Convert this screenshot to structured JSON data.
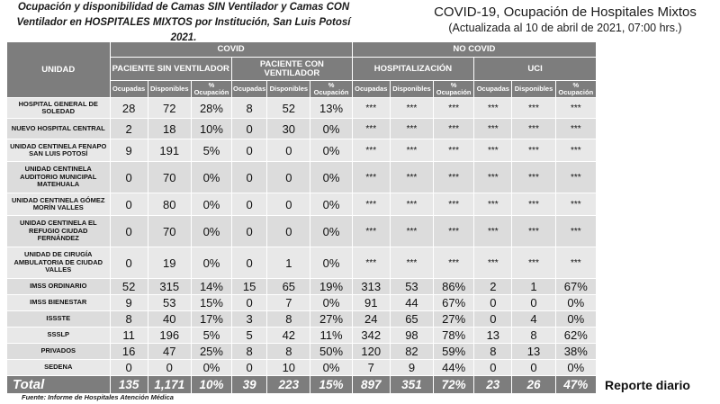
{
  "header": {
    "left_title": "Ocupación y disponibilidad de Camas SIN Ventilador y Camas CON Ventilador en HOSPITALES MIXTOS por Institución, San Luis Potosí 2021.",
    "right_title": "COVID-19, Ocupación de Hospitales Mixtos",
    "right_subtitle": "(Actualizada al 10 de abril de 2021, 07:00 hrs.)"
  },
  "table": {
    "unit_header": "UNIDAD",
    "covid": "COVID",
    "no_covid": "NO COVID",
    "groups": [
      "PACIENTE SIN VENTILADOR",
      "PACIENTE CON VENTILADOR",
      "HOSPITALIZACIÓN",
      "UCI"
    ],
    "subcols": [
      "Ocupadas",
      "Disponibles",
      "% Ocupación"
    ],
    "rows": [
      {
        "unit": "HOSPITAL GENERAL DE SOLEDAD",
        "v": [
          "28",
          "72",
          "28%",
          "8",
          "52",
          "13%",
          "***",
          "***",
          "***",
          "***",
          "***",
          "***"
        ]
      },
      {
        "unit": "NUEVO HOSPITAL CENTRAL",
        "v": [
          "2",
          "18",
          "10%",
          "0",
          "30",
          "0%",
          "***",
          "***",
          "***",
          "***",
          "***",
          "***"
        ]
      },
      {
        "unit": "UNIDAD CENTINELA FENAPO SAN LUIS POTOSÍ",
        "v": [
          "9",
          "191",
          "5%",
          "0",
          "0",
          "0%",
          "***",
          "***",
          "***",
          "***",
          "***",
          "***"
        ]
      },
      {
        "unit": "UNIDAD CENTINELA AUDITORIO MUNICIPAL MATEHUALA",
        "v": [
          "0",
          "70",
          "0%",
          "0",
          "0",
          "0%",
          "***",
          "***",
          "***",
          "***",
          "***",
          "***"
        ]
      },
      {
        "unit": "UNIDAD CENTINELA GÓMEZ MORÍN VALLES",
        "v": [
          "0",
          "80",
          "0%",
          "0",
          "0",
          "0%",
          "***",
          "***",
          "***",
          "***",
          "***",
          "***"
        ]
      },
      {
        "unit": "UNIDAD CENTINELA EL REFUGIO CIUDAD FERNÁNDEZ",
        "v": [
          "0",
          "70",
          "0%",
          "0",
          "0",
          "0%",
          "***",
          "***",
          "***",
          "***",
          "***",
          "***"
        ]
      },
      {
        "unit": "UNIDAD DE CIRUGÍA AMBULATORIA DE CIUDAD VALLES",
        "v": [
          "0",
          "19",
          "0%",
          "0",
          "1",
          "0%",
          "***",
          "***",
          "***",
          "***",
          "***",
          "***"
        ]
      },
      {
        "unit": "IMSS ORDINARIO",
        "v": [
          "52",
          "315",
          "14%",
          "15",
          "65",
          "19%",
          "313",
          "53",
          "86%",
          "2",
          "1",
          "67%"
        ]
      },
      {
        "unit": "IMSS BIENESTAR",
        "v": [
          "9",
          "53",
          "15%",
          "0",
          "7",
          "0%",
          "91",
          "44",
          "67%",
          "0",
          "0",
          "0%"
        ]
      },
      {
        "unit": "ISSSTE",
        "v": [
          "8",
          "40",
          "17%",
          "3",
          "8",
          "27%",
          "24",
          "65",
          "27%",
          "0",
          "4",
          "0%"
        ]
      },
      {
        "unit": "SSSLP",
        "v": [
          "11",
          "196",
          "5%",
          "5",
          "42",
          "11%",
          "342",
          "98",
          "78%",
          "13",
          "8",
          "62%"
        ]
      },
      {
        "unit": "PRIVADOS",
        "v": [
          "16",
          "47",
          "25%",
          "8",
          "8",
          "50%",
          "120",
          "82",
          "59%",
          "8",
          "13",
          "38%"
        ]
      },
      {
        "unit": "SEDENA",
        "v": [
          "0",
          "0",
          "0%",
          "0",
          "10",
          "0%",
          "7",
          "9",
          "44%",
          "0",
          "0",
          "0%"
        ]
      }
    ],
    "total": {
      "unit": "Total",
      "v": [
        "135",
        "1,171",
        "10%",
        "39",
        "223",
        "15%",
        "897",
        "351",
        "72%",
        "23",
        "26",
        "47%"
      ]
    }
  },
  "footer": {
    "source": "Fuente: Informe de Hospitales Atención Médica",
    "report": "Reporte diario"
  }
}
